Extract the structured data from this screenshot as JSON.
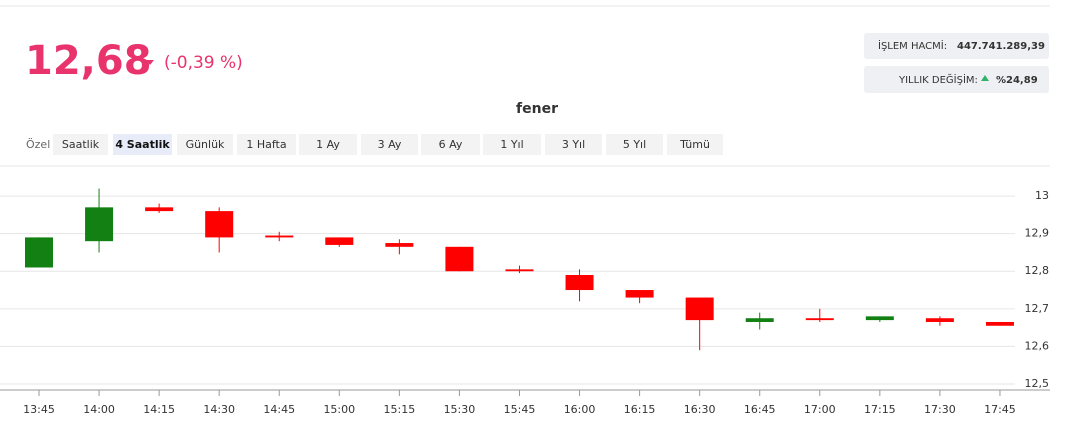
{
  "price": {
    "value": "12,68",
    "change": "(-0,39 %)"
  },
  "stats": [
    {
      "label": "İŞLEM HACMİ:",
      "value": "447.741.289,39"
    },
    {
      "label": "YILLIK DEĞİŞİM:",
      "value": "%24,89"
    }
  ],
  "tabs": {
    "label": "Özel",
    "items": [
      "Saatlik",
      "4 Saatlik",
      "Günlük",
      "1 Hafta",
      "1 Ay",
      "3 Ay",
      "6 Ay",
      "1 Yıl",
      "3 Yıl",
      "5 Yıl",
      "Tümü"
    ],
    "active": "4 Saatlik"
  },
  "chart_data": {
    "type": "candlestick",
    "title": "fener",
    "categories": [
      "13:45",
      "14:00",
      "14:15",
      "14:30",
      "14:45",
      "15:00",
      "15:15",
      "15:30",
      "15:45",
      "16:00",
      "16:15",
      "16:30",
      "16:45",
      "17:00",
      "17:15",
      "17:30",
      "17:45"
    ],
    "open": [
      12.81,
      12.88,
      12.97,
      12.96,
      12.895,
      12.89,
      12.875,
      12.865,
      12.805,
      12.79,
      12.75,
      12.73,
      12.665,
      12.675,
      12.67,
      12.675,
      12.665
    ],
    "high": [
      12.89,
      13.02,
      12.98,
      12.97,
      12.905,
      12.89,
      12.885,
      12.865,
      12.815,
      12.805,
      12.75,
      12.73,
      12.69,
      12.7,
      12.68,
      12.68,
      12.665
    ],
    "low": [
      12.81,
      12.85,
      12.955,
      12.85,
      12.88,
      12.865,
      12.845,
      12.8,
      12.795,
      12.72,
      12.715,
      12.59,
      12.645,
      12.665,
      12.665,
      12.655,
      12.655
    ],
    "close": [
      12.89,
      12.97,
      12.96,
      12.89,
      12.89,
      12.87,
      12.865,
      12.8,
      12.8,
      12.75,
      12.73,
      12.67,
      12.675,
      12.67,
      12.68,
      12.665,
      12.655
    ],
    "up_color": "#138013",
    "down_color": "#ff0000",
    "ylim": [
      12.5,
      13.08
    ],
    "yticks": [
      {
        "value": 12.5,
        "label": "12,5"
      },
      {
        "value": 12.6,
        "label": "12,6"
      },
      {
        "value": 12.7,
        "label": "12,7"
      },
      {
        "value": 12.8,
        "label": "12,8"
      },
      {
        "value": 12.9,
        "label": "12,9"
      },
      13
    ],
    "grid": true
  }
}
